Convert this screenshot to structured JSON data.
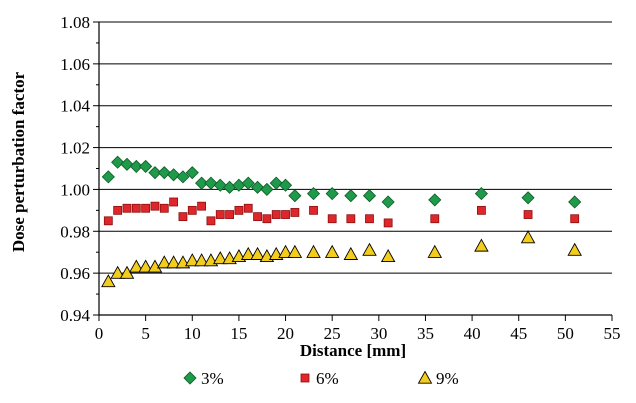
{
  "chart_data": {
    "type": "scatter",
    "title": "",
    "xlabel": "Distance [mm]",
    "ylabel": "Dose perturbation factor",
    "xlim": [
      0,
      55
    ],
    "ylim": [
      0.94,
      1.08
    ],
    "x_ticks": [
      "0",
      "5",
      "10",
      "15",
      "20",
      "25",
      "30",
      "35",
      "40",
      "45",
      "50",
      "55"
    ],
    "y_ticks": [
      "0.94",
      "0.96",
      "0.98",
      "1.00",
      "1.02",
      "1.04",
      "1.06",
      "1.08"
    ],
    "grid": "horizontal",
    "legend_position": "bottom",
    "series": [
      {
        "name": "3%",
        "marker": "diamond",
        "color": "#1e9a4a",
        "x": [
          1,
          2,
          3,
          4,
          5,
          6,
          7,
          8,
          9,
          10,
          11,
          12,
          13,
          14,
          15,
          16,
          17,
          18,
          19,
          20,
          21,
          23,
          25,
          27,
          29,
          31,
          36,
          41,
          46,
          51
        ],
        "y": [
          1.006,
          1.013,
          1.012,
          1.011,
          1.011,
          1.008,
          1.008,
          1.007,
          1.006,
          1.008,
          1.003,
          1.003,
          1.002,
          1.001,
          1.002,
          1.003,
          1.001,
          1.0,
          1.003,
          1.002,
          0.997,
          0.998,
          0.998,
          0.997,
          0.997,
          0.994,
          0.995,
          0.998,
          0.996,
          0.994
        ]
      },
      {
        "name": "6%",
        "marker": "square",
        "color": "#e0262a",
        "x": [
          1,
          2,
          3,
          4,
          5,
          6,
          7,
          8,
          9,
          10,
          11,
          12,
          13,
          14,
          15,
          16,
          17,
          18,
          19,
          20,
          21,
          23,
          25,
          27,
          29,
          31,
          36,
          41,
          46,
          51
        ],
        "y": [
          0.985,
          0.99,
          0.991,
          0.991,
          0.991,
          0.992,
          0.991,
          0.994,
          0.987,
          0.99,
          0.992,
          0.985,
          0.988,
          0.988,
          0.99,
          0.991,
          0.987,
          0.986,
          0.988,
          0.988,
          0.989,
          0.99,
          0.986,
          0.986,
          0.986,
          0.984,
          0.986,
          0.99,
          0.988,
          0.986
        ]
      },
      {
        "name": "9%",
        "marker": "triangle",
        "color": "#f2cd1e",
        "x": [
          1,
          2,
          3,
          4,
          5,
          6,
          7,
          8,
          9,
          10,
          11,
          12,
          13,
          14,
          15,
          16,
          17,
          18,
          19,
          20,
          21,
          23,
          25,
          27,
          29,
          31,
          36,
          41,
          46,
          51
        ],
        "y": [
          0.956,
          0.96,
          0.96,
          0.963,
          0.963,
          0.963,
          0.965,
          0.965,
          0.965,
          0.966,
          0.966,
          0.966,
          0.967,
          0.967,
          0.968,
          0.969,
          0.969,
          0.968,
          0.969,
          0.97,
          0.97,
          0.97,
          0.97,
          0.969,
          0.971,
          0.968,
          0.97,
          0.973,
          0.977,
          0.971
        ]
      }
    ]
  }
}
